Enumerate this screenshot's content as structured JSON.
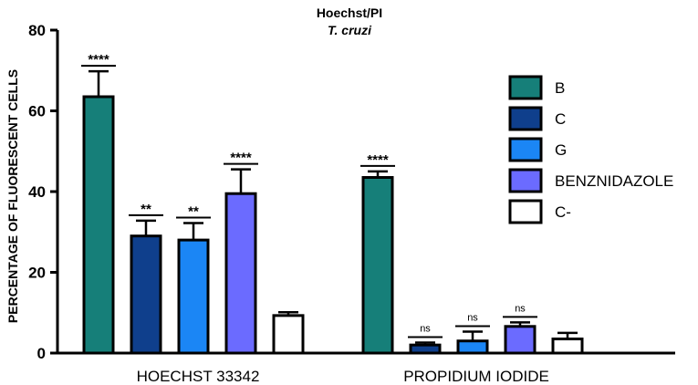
{
  "chart_data": {
    "type": "bar",
    "title": "Hoechst/PI",
    "subtitle": "T. cruzi",
    "ylabel": "PERCENTAGE OF FLUORESCENT CELLS",
    "xlabel": "",
    "ylim": [
      0,
      80
    ],
    "yticks": [
      "0",
      "20",
      "40",
      "60",
      "80"
    ],
    "categories": [
      "HOECHST 33342",
      "PROPIDIUM IODIDE"
    ],
    "legend_position": "right",
    "series": [
      {
        "name": "B",
        "color": "#167f79",
        "values": [
          63.5,
          43.5
        ],
        "errors": [
          6.3,
          1.5
        ],
        "significance": [
          "****",
          "****"
        ]
      },
      {
        "name": "C",
        "color": "#0f3f8c",
        "values": [
          29.0,
          2.0
        ],
        "errors": [
          3.8,
          0.6
        ],
        "significance": [
          "**",
          "ns"
        ]
      },
      {
        "name": "G",
        "color": "#1b86f5",
        "values": [
          28.0,
          3.0
        ],
        "errors": [
          4.2,
          2.3
        ],
        "significance": [
          "**",
          "ns"
        ]
      },
      {
        "name": "BENZNIDAZOLE",
        "color": "#6b6bff",
        "values": [
          39.5,
          6.6
        ],
        "errors": [
          6.0,
          1.0
        ],
        "significance": [
          "****",
          "ns"
        ]
      },
      {
        "name": "C-",
        "color": "#ffffff",
        "values": [
          9.3,
          3.5
        ],
        "errors": [
          0.8,
          1.5
        ],
        "significance": [
          "",
          ""
        ]
      }
    ]
  }
}
